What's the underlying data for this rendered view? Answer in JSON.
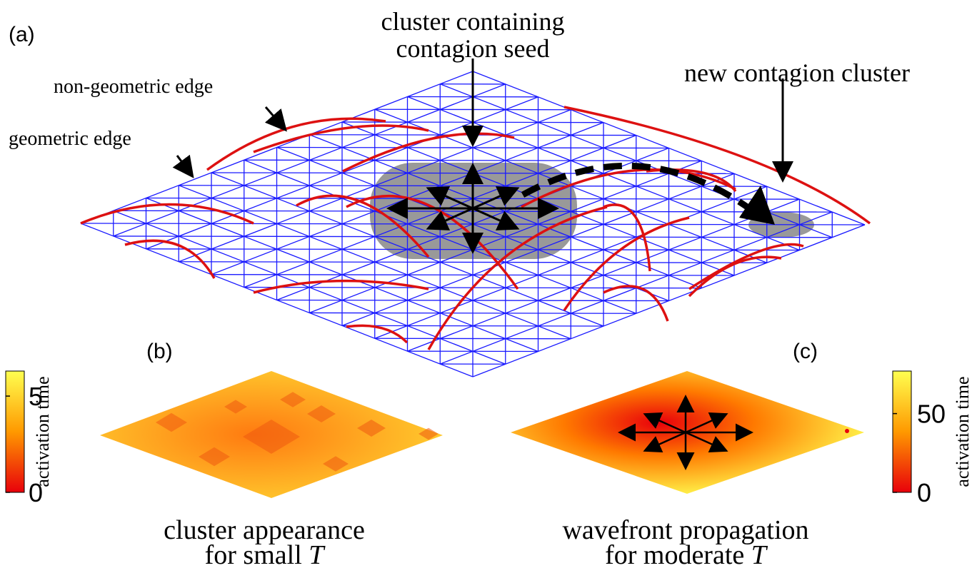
{
  "panel_a": {
    "label": "(a)",
    "seed_label": [
      "cluster containing",
      "contagion seed"
    ],
    "new_cluster_label": "new contagion cluster",
    "non_geometric_label": "non-geometric edge",
    "geometric_label": "geometric edge"
  },
  "panel_b": {
    "label": "(b)",
    "caption": [
      "cluster appearance",
      "for small"
    ],
    "variable": "T",
    "colorbar": {
      "label": "activation time",
      "range": [
        0,
        6.3
      ],
      "ticks": [
        0,
        5
      ]
    }
  },
  "panel_c": {
    "label": "(c)",
    "caption": [
      "wavefront propagation",
      "for moderate"
    ],
    "variable": "T",
    "colorbar": {
      "label": "activation time",
      "range": [
        0,
        77
      ],
      "ticks": [
        0,
        50
      ]
    }
  }
}
